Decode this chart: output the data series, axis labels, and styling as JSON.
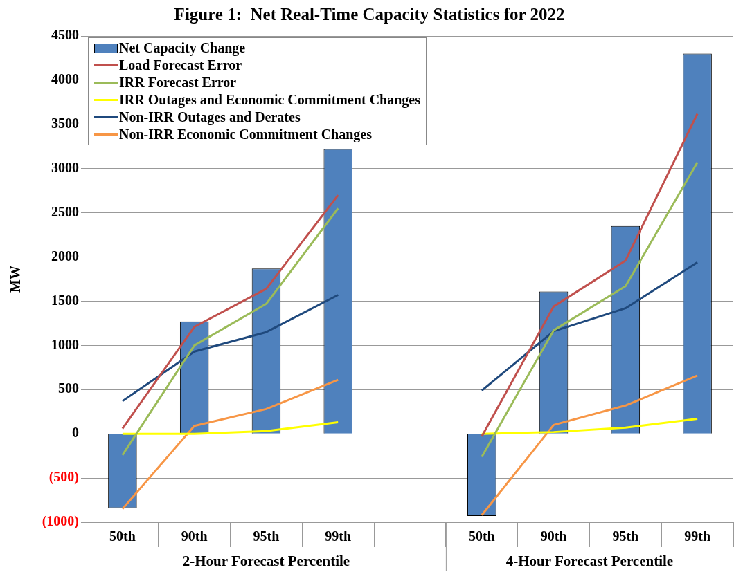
{
  "chart_data": {
    "type": "line",
    "title": "Figure 1:  Net Real-Time Capacity Statistics for 2022",
    "ylabel": "MW",
    "categories": [
      "50th",
      "90th",
      "95th",
      "99th",
      null,
      "50th",
      "90th",
      "95th",
      "99th"
    ],
    "annotations": [
      "2-Hour Forecast Percentile",
      "4-Hour Forecast Percentile"
    ],
    "ylim": [
      -1000,
      4500
    ],
    "yticks": [
      {
        "value": -1000,
        "label": "(1000)"
      },
      {
        "value": -500,
        "label": "(500)"
      },
      0,
      500,
      1000,
      1500,
      2000,
      2500,
      3000,
      3500,
      4000,
      4500
    ],
    "grid": "y",
    "legend": "top left",
    "marker": "none",
    "series": [
      {
        "name": "Net Capacity Change",
        "type": "bar",
        "color": "#4f81bd",
        "values": [
          -840,
          1270,
          1870,
          3220,
          null,
          -930,
          1610,
          2350,
          4300
        ]
      },
      {
        "name": "Load Forecast Error",
        "color": "#c0504d",
        "values": [
          60,
          1210,
          1640,
          2700,
          null,
          -30,
          1440,
          1960,
          3620
        ]
      },
      {
        "name": "IRR Forecast Error",
        "color": "#9bbb59",
        "values": [
          -240,
          1000,
          1470,
          2550,
          null,
          -260,
          1170,
          1670,
          3070
        ]
      },
      {
        "name": "IRR Outages and Economic Commitment Changes",
        "color": "#ffff00",
        "values": [
          0,
          0,
          30,
          130,
          null,
          0,
          20,
          70,
          170
        ]
      },
      {
        "name": "Non-IRR Outages and Derates",
        "color": "#1f497d",
        "values": [
          370,
          930,
          1150,
          1570,
          null,
          490,
          1160,
          1420,
          1940
        ]
      },
      {
        "name": "Non-IRR Economic Commitment Changes",
        "color": "#f79646",
        "values": [
          -850,
          90,
          280,
          610,
          null,
          -920,
          100,
          320,
          660
        ]
      }
    ]
  }
}
